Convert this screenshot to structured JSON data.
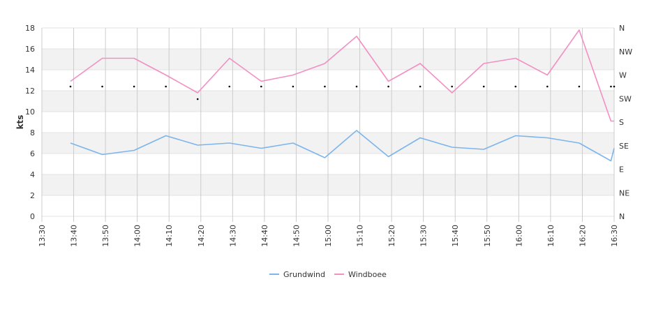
{
  "chart_data": {
    "type": "line",
    "ylabel": "kts",
    "ylim": [
      0,
      18
    ],
    "y_ticks": [
      "0",
      "2",
      "4",
      "6",
      "8",
      "10",
      "12",
      "14",
      "16",
      "18"
    ],
    "x_labels": [
      "13:30",
      "13:40",
      "13:50",
      "14:00",
      "14:10",
      "14:20",
      "14:30",
      "14:40",
      "14:50",
      "15:00",
      "15:10",
      "15:20",
      "15:30",
      "15:40",
      "15:50",
      "16:00",
      "16:10",
      "16:20",
      "16:30"
    ],
    "right_axis_labels": [
      "N",
      "NE",
      "E",
      "SE",
      "S",
      "SW",
      "W",
      "NW",
      "N"
    ],
    "grid": true,
    "legend_position": "bottom",
    "series": [
      {
        "name": "Grundwind",
        "color": "#7cb5ec",
        "x": [
          "13:39",
          "13:49",
          "13:59",
          "14:09",
          "14:19",
          "14:29",
          "14:39",
          "14:49",
          "14:59",
          "15:09",
          "15:19",
          "15:29",
          "15:39",
          "15:49",
          "15:59",
          "16:09",
          "16:19",
          "16:29",
          "16:30"
        ],
        "values": [
          7.0,
          5.9,
          6.3,
          7.7,
          6.8,
          7.0,
          6.5,
          7.0,
          5.6,
          8.2,
          5.7,
          7.5,
          6.6,
          6.4,
          7.7,
          7.5,
          7.0,
          5.3,
          6.5
        ]
      },
      {
        "name": "Windboee",
        "color": "#f28fc3",
        "x": [
          "13:39",
          "13:49",
          "13:59",
          "14:09",
          "14:19",
          "14:29",
          "14:39",
          "14:49",
          "14:59",
          "15:09",
          "15:19",
          "15:29",
          "15:39",
          "15:49",
          "15:59",
          "16:09",
          "16:19",
          "16:29",
          "16:30"
        ],
        "values": [
          12.9,
          15.1,
          15.1,
          13.5,
          11.8,
          15.1,
          12.9,
          13.5,
          14.6,
          17.2,
          12.9,
          14.6,
          11.8,
          14.6,
          15.1,
          13.5,
          17.8,
          9.1,
          9.1
        ]
      }
    ],
    "direction_markers": {
      "x": [
        "13:39",
        "13:49",
        "13:59",
        "14:09",
        "14:19",
        "14:29",
        "14:39",
        "14:49",
        "14:59",
        "15:09",
        "15:19",
        "15:29",
        "15:39",
        "15:49",
        "15:59",
        "16:09",
        "16:19",
        "16:29",
        "16:30"
      ],
      "values": [
        12.4,
        12.4,
        12.4,
        12.4,
        11.2,
        12.4,
        12.4,
        12.4,
        12.4,
        12.4,
        12.4,
        12.4,
        12.4,
        12.4,
        12.4,
        12.4,
        12.4,
        12.4,
        12.4
      ]
    }
  }
}
